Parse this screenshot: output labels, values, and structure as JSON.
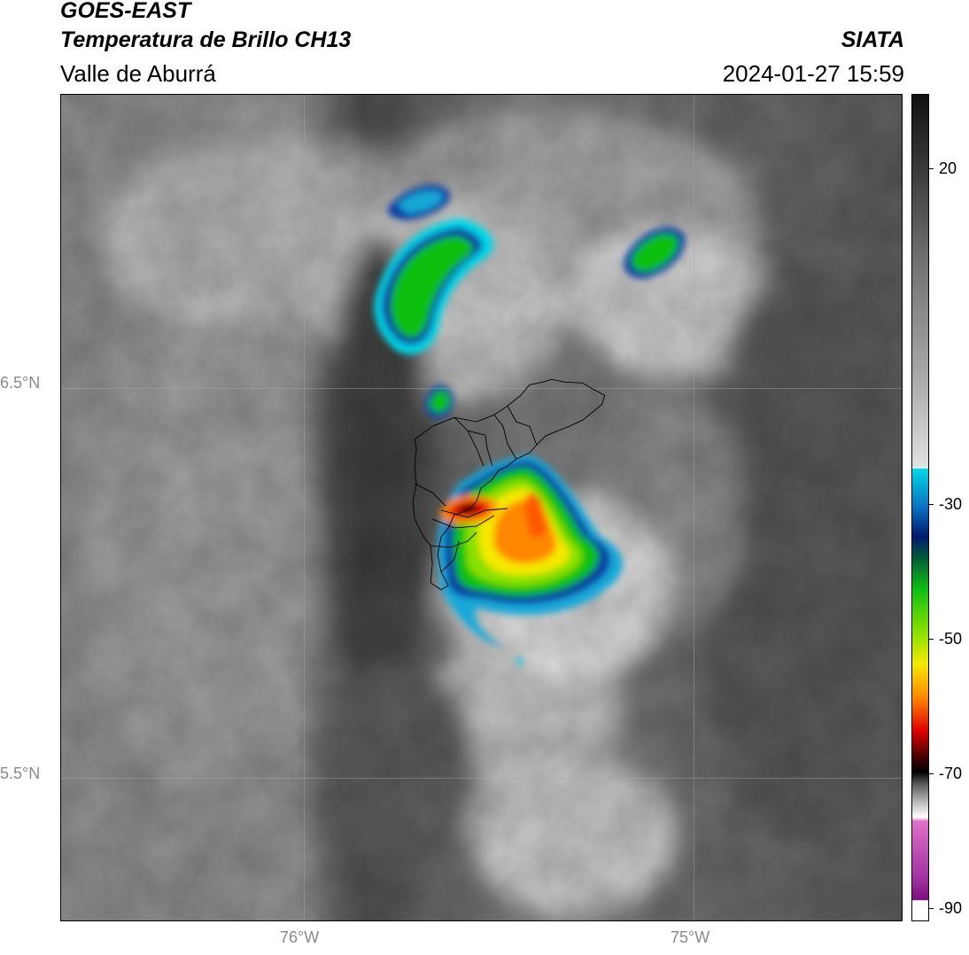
{
  "header": {
    "satellite": "GOES-EAST",
    "product": "Temperatura de Brillo CH13",
    "region": "Valle de Aburrá",
    "source": "SIATA",
    "timestamp": "2024-01-27 15:59"
  },
  "map": {
    "latitude_labels": [
      {
        "value": 6.5,
        "label": "6.5°N"
      },
      {
        "value": 5.5,
        "label": "5.5°N"
      }
    ],
    "longitude_labels": [
      {
        "value": -76.0,
        "label": "76°W"
      },
      {
        "value": -75.0,
        "label": "75°W"
      }
    ],
    "lat_range": [
      5.19,
      7.25
    ],
    "lon_range": [
      -76.63,
      -74.47
    ],
    "gridlines": true
  },
  "colorbar": {
    "range": [
      -92,
      31
    ],
    "ticks": [
      {
        "value": 20,
        "label": "20"
      },
      {
        "value": -30,
        "label": "-30"
      },
      {
        "value": -50,
        "label": "-50"
      },
      {
        "value": -70,
        "label": "-70"
      },
      {
        "value": -90,
        "label": "-90"
      }
    ],
    "colors": {
      "warm_gray_top": "#111111",
      "gray_mid": "#9a9a9a",
      "white": "#f5f5f5",
      "cyan": "#00d8e8",
      "blue": "#0a3aa0",
      "navy": "#001a70",
      "green": "#10c010",
      "lime": "#8ae000",
      "yellow": "#f5e800",
      "orange": "#ff8800",
      "red": "#e00000",
      "dark_red": "#500000",
      "black": "#000000",
      "pink": "#e070c8",
      "purple": "#7a0f80"
    }
  }
}
